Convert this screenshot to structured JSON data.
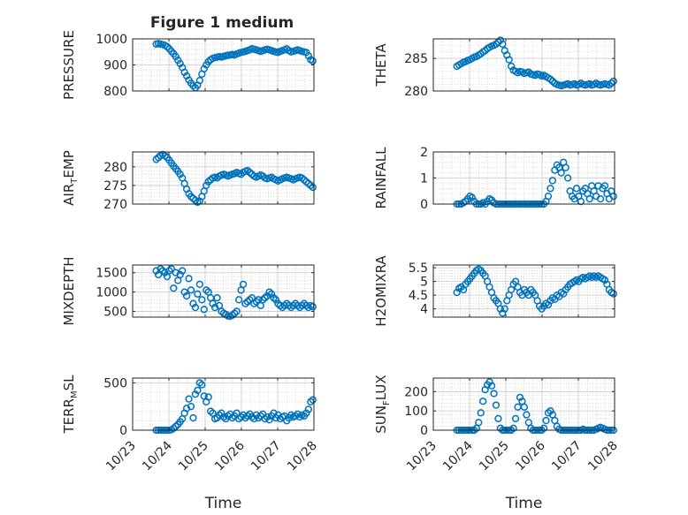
{
  "figure": {
    "title": "Figure 1 medium"
  },
  "colors": {
    "marker": "#0072BD",
    "axis": "#262626",
    "grid": "#c8c8c8"
  },
  "chart_data": [
    {
      "type": "scatter",
      "ylabel": "PRESSURE",
      "title": "Figure 1 medium",
      "xlabel": "",
      "xlim": [
        0,
        5
      ],
      "ylim": [
        800,
        1000
      ],
      "yticks": [
        800,
        900,
        1000
      ],
      "xtick_labels": [],
      "x": [
        0.65,
        0.71,
        0.77,
        0.83,
        0.89,
        0.95,
        1.01,
        1.07,
        1.13,
        1.19,
        1.25,
        1.31,
        1.37,
        1.43,
        1.49,
        1.55,
        1.61,
        1.67,
        1.73,
        1.79,
        1.85,
        1.91,
        1.97,
        2.03,
        2.09,
        2.15,
        2.21,
        2.27,
        2.33,
        2.39,
        2.45,
        2.51,
        2.57,
        2.63,
        2.69,
        2.75,
        2.81,
        2.87,
        2.93,
        2.99,
        3.05,
        3.11,
        3.17,
        3.23,
        3.29,
        3.35,
        3.41,
        3.47,
        3.53,
        3.59,
        3.65,
        3.71,
        3.77,
        3.83,
        3.89,
        3.95,
        4.01,
        4.07,
        4.13,
        4.19,
        4.25,
        4.31,
        4.37,
        4.43,
        4.49,
        4.55,
        4.61,
        4.67,
        4.73,
        4.79,
        4.85,
        4.91,
        4.97
      ],
      "y": [
        980,
        982,
        980,
        978,
        975,
        970,
        962,
        952,
        943,
        932,
        918,
        905,
        890,
        872,
        858,
        842,
        830,
        820,
        812,
        822,
        840,
        865,
        885,
        900,
        912,
        920,
        925,
        928,
        930,
        932,
        930,
        933,
        935,
        937,
        938,
        940,
        938,
        942,
        945,
        948,
        950,
        952,
        955,
        958,
        962,
        960,
        958,
        955,
        952,
        955,
        958,
        960,
        958,
        955,
        952,
        950,
        948,
        952,
        955,
        958,
        962,
        955,
        950,
        952,
        955,
        958,
        955,
        952,
        950,
        948,
        935,
        920,
        915
      ]
    },
    {
      "type": "scatter",
      "ylabel": "THETA",
      "xlabel": "",
      "xlim": [
        0,
        5
      ],
      "ylim": [
        280,
        288
      ],
      "yticks": [
        280,
        285
      ],
      "xtick_labels": [],
      "x": [
        0.65,
        0.71,
        0.77,
        0.83,
        0.89,
        0.95,
        1.01,
        1.07,
        1.13,
        1.19,
        1.25,
        1.31,
        1.37,
        1.43,
        1.49,
        1.55,
        1.61,
        1.67,
        1.73,
        1.79,
        1.85,
        1.91,
        1.97,
        2.03,
        2.09,
        2.15,
        2.21,
        2.27,
        2.33,
        2.39,
        2.45,
        2.51,
        2.57,
        2.63,
        2.69,
        2.75,
        2.81,
        2.87,
        2.93,
        2.99,
        3.05,
        3.11,
        3.17,
        3.23,
        3.29,
        3.35,
        3.41,
        3.47,
        3.53,
        3.59,
        3.65,
        3.71,
        3.77,
        3.83,
        3.89,
        3.95,
        4.01,
        4.07,
        4.13,
        4.19,
        4.25,
        4.31,
        4.37,
        4.43,
        4.49,
        4.55,
        4.61,
        4.67,
        4.73,
        4.79,
        4.85,
        4.91,
        4.97
      ],
      "y": [
        283.8,
        284.0,
        284.2,
        284.4,
        284.5,
        284.7,
        284.8,
        285.0,
        285.2,
        285.3,
        285.5,
        285.7,
        286.0,
        286.2,
        286.5,
        286.7,
        286.9,
        287.0,
        287.2,
        287.5,
        287.8,
        287.2,
        286.2,
        285.5,
        284.8,
        283.8,
        283.2,
        283.0,
        282.8,
        283.0,
        282.9,
        282.7,
        282.8,
        282.9,
        282.6,
        282.5,
        282.4,
        282.6,
        282.5,
        282.3,
        282.4,
        282.2,
        282.0,
        281.8,
        281.5,
        281.2,
        281.0,
        280.9,
        280.8,
        280.9,
        281.0,
        281.1,
        280.9,
        281.0,
        281.1,
        280.9,
        281.0,
        281.2,
        281.0,
        280.9,
        281.0,
        281.1,
        280.9,
        281.0,
        281.2,
        281.0,
        280.9,
        281.0,
        281.1,
        281.0,
        280.9,
        281.2,
        281.5
      ]
    },
    {
      "type": "scatter",
      "ylabel": "AIR",
      "ylabel_sub": "T",
      "ylabel_rest": "EMP",
      "xlabel": "",
      "xlim": [
        0,
        5
      ],
      "ylim": [
        270,
        284
      ],
      "yticks": [
        270,
        275,
        280
      ],
      "xtick_labels": [],
      "x": [
        0.65,
        0.71,
        0.77,
        0.83,
        0.89,
        0.95,
        1.01,
        1.07,
        1.13,
        1.19,
        1.25,
        1.31,
        1.37,
        1.43,
        1.49,
        1.55,
        1.61,
        1.67,
        1.73,
        1.79,
        1.85,
        1.91,
        1.97,
        2.03,
        2.09,
        2.15,
        2.21,
        2.27,
        2.33,
        2.39,
        2.45,
        2.51,
        2.57,
        2.63,
        2.69,
        2.75,
        2.81,
        2.87,
        2.93,
        2.99,
        3.05,
        3.11,
        3.17,
        3.23,
        3.29,
        3.35,
        3.41,
        3.47,
        3.53,
        3.59,
        3.65,
        3.71,
        3.77,
        3.83,
        3.89,
        3.95,
        4.01,
        4.07,
        4.13,
        4.19,
        4.25,
        4.31,
        4.37,
        4.43,
        4.49,
        4.55,
        4.61,
        4.67,
        4.73,
        4.79,
        4.85,
        4.91,
        4.97
      ],
      "y": [
        282.0,
        282.5,
        283.0,
        283.3,
        283.0,
        282.5,
        281.8,
        281.0,
        280.2,
        279.5,
        278.8,
        278.0,
        277.0,
        275.5,
        274.0,
        272.8,
        272.0,
        271.5,
        271.0,
        270.5,
        270.8,
        272.0,
        273.5,
        275.0,
        276.0,
        276.5,
        277.0,
        277.2,
        277.0,
        277.5,
        277.8,
        278.0,
        277.8,
        277.5,
        277.8,
        278.0,
        278.2,
        278.5,
        278.2,
        278.0,
        278.5,
        278.8,
        279.0,
        278.5,
        278.0,
        277.5,
        277.2,
        277.5,
        277.8,
        277.5,
        277.0,
        276.8,
        277.0,
        277.2,
        276.8,
        276.5,
        276.2,
        276.5,
        276.8,
        277.0,
        277.2,
        277.0,
        276.8,
        276.5,
        276.8,
        277.0,
        277.2,
        277.0,
        276.5,
        276.0,
        275.5,
        275.0,
        274.5
      ]
    },
    {
      "type": "scatter",
      "ylabel": "RAINFALL",
      "xlabel": "",
      "xlim": [
        0,
        5
      ],
      "ylim": [
        0,
        2
      ],
      "yticks": [
        0,
        1,
        2
      ],
      "xtick_labels": [],
      "x": [
        0.65,
        0.71,
        0.77,
        0.83,
        0.89,
        0.95,
        1.01,
        1.07,
        1.13,
        1.19,
        1.25,
        1.31,
        1.37,
        1.43,
        1.49,
        1.55,
        1.61,
        1.67,
        1.73,
        1.79,
        1.85,
        1.91,
        1.97,
        2.03,
        2.09,
        2.15,
        2.21,
        2.27,
        2.33,
        2.39,
        2.45,
        2.51,
        2.57,
        2.63,
        2.69,
        2.75,
        2.81,
        2.87,
        2.93,
        2.99,
        3.05,
        3.11,
        3.17,
        3.23,
        3.29,
        3.35,
        3.41,
        3.47,
        3.53,
        3.59,
        3.65,
        3.71,
        3.77,
        3.83,
        3.89,
        3.95,
        4.01,
        4.07,
        4.13,
        4.19,
        4.25,
        4.31,
        4.37,
        4.43,
        4.49,
        4.55,
        4.61,
        4.67,
        4.73,
        4.79,
        4.85,
        4.91,
        4.97
      ],
      "y": [
        0,
        0,
        0,
        0.05,
        0.1,
        0.2,
        0.3,
        0.25,
        0.1,
        0,
        0,
        0,
        0.05,
        0,
        0.1,
        0.2,
        0.15,
        0.05,
        0,
        0,
        0,
        0,
        0,
        0,
        0,
        0,
        0,
        0,
        0,
        0,
        0,
        0,
        0,
        0,
        0,
        0,
        0,
        0,
        0,
        0,
        0,
        0.1,
        0.3,
        0.6,
        0.9,
        1.3,
        1.5,
        1.4,
        1.2,
        1.6,
        1.4,
        1.0,
        0.5,
        0.3,
        0.2,
        0.6,
        0.3,
        0.1,
        0.5,
        0.6,
        0.4,
        0.2,
        0.7,
        0.5,
        0.3,
        0.7,
        0.2,
        0.6,
        0.7,
        0.4,
        0.2,
        0.5,
        0.3
      ]
    },
    {
      "type": "scatter",
      "ylabel": "MIXDEPTH",
      "xlabel": "",
      "xlim": [
        0,
        5
      ],
      "ylim": [
        350,
        1700
      ],
      "yticks": [
        500,
        1000,
        1500
      ],
      "xtick_labels": [],
      "x": [
        0.65,
        0.71,
        0.77,
        0.83,
        0.89,
        0.95,
        1.01,
        1.07,
        1.13,
        1.19,
        1.25,
        1.31,
        1.37,
        1.43,
        1.49,
        1.55,
        1.61,
        1.67,
        1.73,
        1.79,
        1.85,
        1.91,
        1.97,
        2.03,
        2.09,
        2.15,
        2.21,
        2.27,
        2.33,
        2.39,
        2.45,
        2.51,
        2.57,
        2.63,
        2.69,
        2.75,
        2.81,
        2.87,
        2.93,
        2.99,
        3.05,
        3.11,
        3.17,
        3.23,
        3.29,
        3.35,
        3.41,
        3.47,
        3.53,
        3.59,
        3.65,
        3.71,
        3.77,
        3.83,
        3.89,
        3.95,
        4.01,
        4.07,
        4.13,
        4.19,
        4.25,
        4.31,
        4.37,
        4.43,
        4.49,
        4.55,
        4.61,
        4.67,
        4.73,
        4.79,
        4.85,
        4.91,
        4.97
      ],
      "y": [
        1550,
        1450,
        1600,
        1550,
        1500,
        1400,
        1550,
        1600,
        1100,
        1500,
        1300,
        1450,
        1550,
        1000,
        900,
        1350,
        1050,
        700,
        600,
        950,
        1200,
        800,
        550,
        1050,
        1000,
        850,
        700,
        600,
        850,
        650,
        500,
        450,
        420,
        380,
        370,
        400,
        450,
        500,
        800,
        1050,
        1200,
        700,
        750,
        800,
        850,
        700,
        750,
        800,
        650,
        800,
        850,
        900,
        1000,
        950,
        850,
        800,
        700,
        650,
        600,
        650,
        700,
        650,
        600,
        650,
        700,
        650,
        600,
        650,
        700,
        650,
        600,
        650,
        620
      ]
    },
    {
      "type": "scatter",
      "ylabel": "H2OMIXRA",
      "xlabel": "",
      "xlim": [
        0,
        5
      ],
      "ylim": [
        3.7,
        5.6
      ],
      "yticks": [
        4,
        4.5,
        5,
        5.5
      ],
      "xtick_labels": [],
      "x": [
        0.65,
        0.71,
        0.77,
        0.83,
        0.89,
        0.95,
        1.01,
        1.07,
        1.13,
        1.19,
        1.25,
        1.31,
        1.37,
        1.43,
        1.49,
        1.55,
        1.61,
        1.67,
        1.73,
        1.79,
        1.85,
        1.91,
        1.97,
        2.03,
        2.09,
        2.15,
        2.21,
        2.27,
        2.33,
        2.39,
        2.45,
        2.51,
        2.57,
        2.63,
        2.69,
        2.75,
        2.81,
        2.87,
        2.93,
        2.99,
        3.05,
        3.11,
        3.17,
        3.23,
        3.29,
        3.35,
        3.41,
        3.47,
        3.53,
        3.59,
        3.65,
        3.71,
        3.77,
        3.83,
        3.89,
        3.95,
        4.01,
        4.07,
        4.13,
        4.19,
        4.25,
        4.31,
        4.37,
        4.43,
        4.49,
        4.55,
        4.61,
        4.67,
        4.73,
        4.79,
        4.85,
        4.91,
        4.97
      ],
      "y": [
        4.6,
        4.75,
        4.8,
        4.7,
        4.9,
        5.0,
        5.1,
        5.2,
        5.3,
        5.4,
        5.45,
        5.4,
        5.3,
        5.2,
        5.0,
        4.8,
        4.6,
        4.4,
        4.3,
        4.2,
        4.0,
        3.85,
        4.0,
        4.3,
        4.5,
        4.7,
        4.9,
        5.0,
        4.8,
        4.6,
        4.5,
        4.7,
        4.6,
        4.5,
        4.7,
        4.6,
        4.5,
        4.3,
        4.1,
        4.0,
        4.1,
        4.2,
        4.15,
        4.3,
        4.4,
        4.35,
        4.5,
        4.45,
        4.6,
        4.55,
        4.7,
        4.8,
        4.9,
        4.95,
        5.0,
        5.05,
        5.0,
        5.1,
        5.15,
        5.1,
        5.15,
        5.2,
        5.15,
        5.2,
        5.15,
        5.2,
        5.15,
        5.1,
        5.05,
        4.9,
        4.7,
        4.6,
        4.55
      ]
    },
    {
      "type": "scatter",
      "ylabel": "TERR",
      "ylabel_sub": "M",
      "ylabel_rest": "SL",
      "xlabel": "Time",
      "xlim": [
        0,
        5
      ],
      "ylim": [
        0,
        550
      ],
      "yticks": [
        0,
        500
      ],
      "xtick_labels": [
        "10/23",
        "10/24",
        "10/25",
        "10/26",
        "10/27",
        "10/28"
      ],
      "x": [
        0.65,
        0.71,
        0.77,
        0.83,
        0.89,
        0.95,
        1.01,
        1.07,
        1.13,
        1.19,
        1.25,
        1.31,
        1.37,
        1.43,
        1.49,
        1.55,
        1.61,
        1.67,
        1.73,
        1.79,
        1.85,
        1.91,
        1.97,
        2.03,
        2.09,
        2.15,
        2.21,
        2.27,
        2.33,
        2.39,
        2.45,
        2.51,
        2.57,
        2.63,
        2.69,
        2.75,
        2.81,
        2.87,
        2.93,
        2.99,
        3.05,
        3.11,
        3.17,
        3.23,
        3.29,
        3.35,
        3.41,
        3.47,
        3.53,
        3.59,
        3.65,
        3.71,
        3.77,
        3.83,
        3.89,
        3.95,
        4.01,
        4.07,
        4.13,
        4.19,
        4.25,
        4.31,
        4.37,
        4.43,
        4.49,
        4.55,
        4.61,
        4.67,
        4.73,
        4.79,
        4.85,
        4.91,
        4.97
      ],
      "y": [
        0,
        0,
        0,
        0,
        0,
        0,
        0,
        5,
        20,
        40,
        60,
        90,
        120,
        180,
        230,
        330,
        250,
        130,
        380,
        420,
        500,
        480,
        360,
        300,
        350,
        200,
        180,
        120,
        130,
        160,
        180,
        140,
        120,
        150,
        170,
        130,
        150,
        180,
        120,
        140,
        160,
        130,
        150,
        170,
        140,
        120,
        160,
        130,
        150,
        170,
        120,
        140,
        110,
        150,
        180,
        130,
        160,
        120,
        140,
        150,
        100,
        130,
        160,
        140,
        150,
        170,
        140,
        160,
        150,
        180,
        220,
        300,
        320
      ]
    },
    {
      "type": "scatter",
      "ylabel": "SUN",
      "ylabel_sub": "F",
      "ylabel_rest": "LUX",
      "xlabel": "Time",
      "xlim": [
        0,
        5
      ],
      "ylim": [
        0,
        270
      ],
      "yticks": [
        0,
        100,
        200
      ],
      "xtick_labels": [
        "10/23",
        "10/24",
        "10/25",
        "10/26",
        "10/27",
        "10/28"
      ],
      "x": [
        0.65,
        0.71,
        0.77,
        0.83,
        0.89,
        0.95,
        1.01,
        1.07,
        1.13,
        1.19,
        1.25,
        1.31,
        1.37,
        1.43,
        1.49,
        1.55,
        1.61,
        1.67,
        1.73,
        1.79,
        1.85,
        1.91,
        1.97,
        2.03,
        2.09,
        2.15,
        2.21,
        2.27,
        2.33,
        2.39,
        2.45,
        2.51,
        2.57,
        2.63,
        2.69,
        2.75,
        2.81,
        2.87,
        2.93,
        2.99,
        3.05,
        3.11,
        3.17,
        3.23,
        3.29,
        3.35,
        3.41,
        3.47,
        3.53,
        3.59,
        3.65,
        3.71,
        3.77,
        3.83,
        3.89,
        3.95,
        4.01,
        4.07,
        4.13,
        4.19,
        4.25,
        4.31,
        4.37,
        4.43,
        4.49,
        4.55,
        4.61,
        4.67,
        4.73,
        4.79,
        4.85,
        4.91,
        4.97
      ],
      "y": [
        0,
        0,
        0,
        0,
        0,
        0,
        0,
        0,
        0,
        10,
        40,
        90,
        150,
        210,
        235,
        250,
        230,
        190,
        130,
        60,
        10,
        0,
        0,
        0,
        0,
        0,
        10,
        60,
        120,
        170,
        150,
        120,
        80,
        40,
        10,
        0,
        0,
        0,
        0,
        0,
        10,
        50,
        90,
        100,
        80,
        50,
        20,
        5,
        0,
        0,
        0,
        0,
        0,
        0,
        0,
        0,
        0,
        0,
        5,
        0,
        0,
        0,
        0,
        0,
        5,
        10,
        15,
        10,
        5,
        0,
        0,
        0,
        0
      ]
    }
  ]
}
